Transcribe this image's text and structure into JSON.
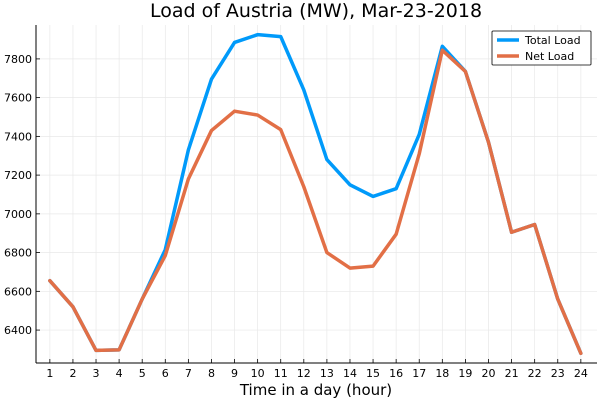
{
  "chart_data": {
    "type": "line",
    "title": "Load of Austria (MW), Mar-23-2018",
    "xlabel": "Time in a day (hour)",
    "ylabel": "",
    "x": [
      1,
      2,
      3,
      4,
      5,
      6,
      7,
      8,
      9,
      10,
      11,
      12,
      13,
      14,
      15,
      16,
      17,
      18,
      19,
      20,
      21,
      22,
      23,
      24
    ],
    "xlim": [
      0.4,
      24.7
    ],
    "ylim": [
      6230,
      7975
    ],
    "yticks": [
      6400,
      6600,
      6800,
      7000,
      7200,
      7400,
      7600,
      7800
    ],
    "grid": true,
    "legend_position": "top-right",
    "series": [
      {
        "name": "Total Load",
        "color": "#009AFA",
        "values": [
          6655,
          6520,
          6295,
          6298,
          6560,
          6815,
          7330,
          7695,
          7885,
          7925,
          7915,
          7640,
          7280,
          7150,
          7090,
          7130,
          7410,
          7865,
          7735,
          7370,
          6905,
          6945,
          6560,
          6280
        ]
      },
      {
        "name": "Net Load",
        "color": "#E26F46",
        "values": [
          6655,
          6520,
          6295,
          6298,
          6560,
          6785,
          7180,
          7430,
          7530,
          7510,
          7435,
          7140,
          6800,
          6720,
          6730,
          6895,
          7310,
          7845,
          7735,
          7370,
          6905,
          6945,
          6560,
          6280
        ]
      }
    ]
  }
}
